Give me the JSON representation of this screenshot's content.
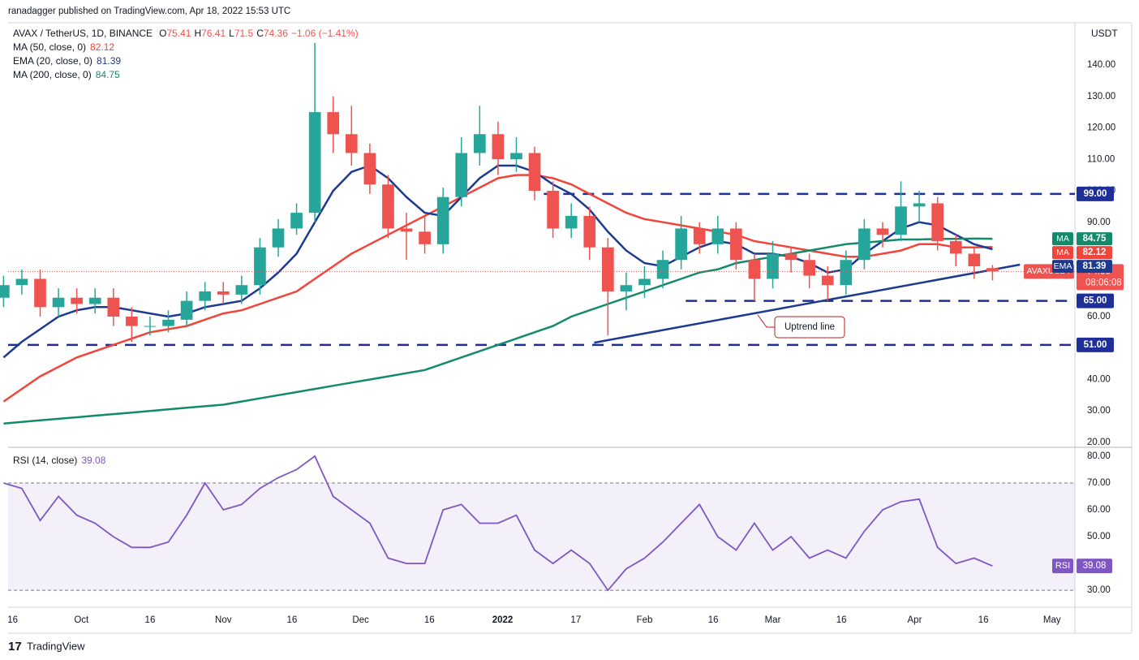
{
  "header": {
    "published": "ranadagger published on TradingView.com, Apr 18, 2022 15:53 UTC",
    "symbol": "AVAX / TetherUS, 1D, BINANCE",
    "ohlc_letters": [
      "O",
      "H",
      "L",
      "C"
    ],
    "change": "−1.06 (−1.41%)",
    "currency": "USDT",
    "price_tag": "AVAXUSDT",
    "countdown": "08:06:08"
  },
  "chart_data": [
    {
      "type": "candlestick",
      "x": [
        "2021-09-14",
        "2021-09-18",
        "2021-09-22",
        "2021-09-26",
        "2021-09-30",
        "2021-10-04",
        "2021-10-08",
        "2021-10-12",
        "2021-10-16",
        "2021-10-20",
        "2021-10-24",
        "2021-10-28",
        "2021-11-01",
        "2021-11-05",
        "2021-11-09",
        "2021-11-13",
        "2021-11-17",
        "2021-11-21",
        "2021-11-25",
        "2021-11-29",
        "2021-12-03",
        "2021-12-07",
        "2021-12-11",
        "2021-12-15",
        "2021-12-19",
        "2021-12-23",
        "2021-12-27",
        "2021-12-31",
        "2022-01-04",
        "2022-01-08",
        "2022-01-12",
        "2022-01-16",
        "2022-01-20",
        "2022-01-24",
        "2022-01-28",
        "2022-02-01",
        "2022-02-05",
        "2022-02-09",
        "2022-02-13",
        "2022-02-17",
        "2022-02-21",
        "2022-02-25",
        "2022-03-01",
        "2022-03-05",
        "2022-03-09",
        "2022-03-13",
        "2022-03-17",
        "2022-03-21",
        "2022-03-25",
        "2022-03-29",
        "2022-04-02",
        "2022-04-06",
        "2022-04-10",
        "2022-04-14",
        "2022-04-18"
      ],
      "open": [
        66,
        70,
        72,
        63,
        66,
        64,
        66,
        60,
        57,
        57,
        59,
        65,
        68,
        67,
        70,
        82,
        88,
        93,
        125,
        118,
        112,
        102,
        88,
        87,
        83,
        98,
        112,
        118,
        110,
        112,
        100,
        88,
        92,
        82,
        68,
        70,
        72,
        78,
        88,
        83,
        88,
        78,
        72,
        80,
        78,
        73,
        70,
        78,
        88,
        86,
        95,
        96,
        84,
        80,
        75.41
      ],
      "high": [
        73,
        75,
        75,
        69,
        69,
        69,
        69,
        63,
        60,
        62,
        68,
        71,
        71,
        73,
        85,
        91,
        96,
        147,
        130,
        127,
        115,
        105,
        93,
        92,
        101,
        117,
        127,
        122,
        117,
        114,
        103,
        96,
        95,
        85,
        74,
        76,
        81,
        92,
        90,
        92,
        90,
        80,
        84,
        82,
        80,
        76,
        81,
        91,
        90,
        103,
        100,
        98,
        86,
        82,
        76.41
      ],
      "low": [
        63,
        67,
        60,
        60,
        61,
        61,
        57,
        52,
        54,
        55,
        57,
        62,
        64,
        64,
        67,
        79,
        86,
        90,
        112,
        108,
        99,
        85,
        78,
        80,
        80,
        95,
        108,
        105,
        106,
        97,
        85,
        85,
        78,
        54,
        62,
        66,
        69,
        75,
        80,
        80,
        75,
        65,
        69,
        74,
        69,
        65,
        67,
        75,
        82,
        84,
        90,
        81,
        76,
        72,
        71.5
      ],
      "close": [
        70,
        72,
        63,
        66,
        64,
        66,
        60,
        57,
        57,
        59,
        65,
        68,
        67,
        70,
        82,
        88,
        93,
        125,
        118,
        112,
        102,
        88,
        87,
        83,
        98,
        112,
        118,
        110,
        112,
        100,
        88,
        92,
        82,
        68,
        70,
        72,
        78,
        88,
        83,
        88,
        78,
        72,
        80,
        78,
        73,
        70,
        78,
        88,
        86,
        95,
        96,
        84,
        80,
        76,
        74.36
      ],
      "up_color": "#26a69a",
      "down_color": "#ef5350",
      "series": [
        {
          "name": "MA (50, close, 0)",
          "tag": "MA",
          "color": "#f0453a",
          "values": [
            33,
            37,
            41,
            44,
            47,
            49,
            51,
            53,
            55,
            56,
            57,
            59,
            61,
            62,
            64,
            66,
            68,
            72,
            76,
            80,
            83,
            86,
            89,
            92,
            95,
            98,
            101,
            104,
            105,
            105,
            104,
            102,
            99,
            96,
            93,
            91,
            90,
            89,
            88,
            87,
            86,
            84,
            83,
            82,
            81,
            80,
            79,
            79,
            80,
            81,
            83,
            83,
            82,
            82,
            82.12
          ]
        },
        {
          "name": "EMA (20, close, 0)",
          "tag": "EMA",
          "color": "#1c3a8f",
          "values": [
            47,
            52,
            56,
            60,
            62,
            63,
            63,
            62,
            61,
            60,
            61,
            63,
            64,
            65,
            69,
            74,
            80,
            90,
            100,
            106,
            108,
            104,
            98,
            93,
            92,
            98,
            104,
            108,
            108,
            106,
            102,
            99,
            94,
            87,
            81,
            77,
            76,
            79,
            82,
            84,
            83,
            80,
            80,
            79,
            77,
            74,
            75,
            80,
            84,
            88,
            90,
            89,
            86,
            83,
            81.39
          ]
        },
        {
          "name": "MA (200, close, 0)",
          "tag": "MA",
          "color": "#138a6b",
          "values": [
            26,
            26.5,
            27,
            27.5,
            28,
            28.5,
            29,
            29.5,
            30,
            30.5,
            31,
            31.5,
            32,
            33,
            34,
            35,
            36,
            37,
            38,
            39,
            40,
            41,
            42,
            43,
            45,
            47,
            49,
            51,
            53,
            55,
            57,
            60,
            62,
            64,
            66,
            68,
            70,
            72,
            74,
            75,
            77,
            78,
            79,
            80,
            81,
            82,
            83,
            83.5,
            84,
            84.5,
            84.5,
            84.7,
            84.7,
            84.8,
            84.75
          ]
        }
      ],
      "xlim": [
        "2021-09-15",
        "2022-05-06"
      ],
      "xticks": [
        {
          "value": "2021-09-16",
          "label": "16"
        },
        {
          "value": "2021-10-01",
          "label": "Oct"
        },
        {
          "value": "2021-10-16",
          "label": "16"
        },
        {
          "value": "2021-11-01",
          "label": "Nov"
        },
        {
          "value": "2021-11-16",
          "label": "16"
        },
        {
          "value": "2021-12-01",
          "label": "Dec"
        },
        {
          "value": "2021-12-16",
          "label": "16"
        },
        {
          "value": "2022-01-01",
          "label": "2022"
        },
        {
          "value": "2022-01-17",
          "label": "17"
        },
        {
          "value": "2022-02-01",
          "label": "Feb"
        },
        {
          "value": "2022-02-16",
          "label": "16"
        },
        {
          "value": "2022-03-01",
          "label": "Mar"
        },
        {
          "value": "2022-03-16",
          "label": "16"
        },
        {
          "value": "2022-04-01",
          "label": "Apr"
        },
        {
          "value": "2022-04-16",
          "label": "16"
        },
        {
          "value": "2022-05-01",
          "label": "May"
        }
      ],
      "ylim": [
        18.7,
        152.9
      ],
      "yticks": [
        {
          "value": 20,
          "label": "20.00"
        },
        {
          "value": 30,
          "label": "30.00"
        },
        {
          "value": 40,
          "label": "40.00"
        },
        {
          "value": 50,
          "label": "50.00"
        },
        {
          "value": 60,
          "label": "60.00"
        },
        {
          "value": 70,
          "label": "70.00"
        },
        {
          "value": 80,
          "label": "80.00"
        },
        {
          "value": 90,
          "label": "90.00"
        },
        {
          "value": 100,
          "label": "100.00"
        },
        {
          "value": 110,
          "label": "110.00"
        },
        {
          "value": 120,
          "label": "120.00"
        },
        {
          "value": 130,
          "label": "130.00"
        },
        {
          "value": 140,
          "label": "140.00"
        }
      ],
      "levels": [
        {
          "value": 99,
          "label": "99.00",
          "from": "2022-01-10",
          "color": "#1e2f97"
        },
        {
          "value": 65,
          "label": "65.00",
          "from": "2022-02-10",
          "color": "#1e2f97"
        },
        {
          "value": 51,
          "label": "51.00",
          "from": "2021-09-15",
          "color": "#1e2f97"
        }
      ],
      "trendline": {
        "x": [
          "2022-01-21",
          "2022-04-24"
        ],
        "values": [
          51.7,
          76.5
        ],
        "color": "#1c3a8f"
      },
      "annotation": "Uptrend line"
    },
    {
      "type": "line",
      "series": [
        {
          "name": "RSI (14, close)",
          "tag": "RSI",
          "color": "#7e57c2",
          "values": [
            70,
            68,
            56,
            65,
            58,
            55,
            50,
            46,
            46,
            48,
            58,
            70,
            60,
            62,
            68,
            72,
            75,
            80,
            65,
            60,
            55,
            42,
            40,
            40,
            60,
            62,
            55,
            55,
            58,
            45,
            40,
            45,
            40,
            30,
            38,
            42,
            48,
            55,
            62,
            50,
            45,
            55,
            45,
            50,
            42,
            45,
            42,
            52,
            60,
            63,
            64,
            46,
            40,
            42,
            39.08
          ]
        }
      ],
      "ylim": [
        23.7,
        83
      ],
      "yticks": [
        {
          "value": 30,
          "label": "30.00"
        },
        {
          "value": 40,
          "label": "40.00"
        },
        {
          "value": 50,
          "label": "50.00"
        },
        {
          "value": 60,
          "label": "60.00"
        },
        {
          "value": 70,
          "label": "70.00"
        },
        {
          "value": 80,
          "label": "80.00"
        }
      ],
      "band": [
        30,
        70
      ]
    }
  ],
  "footer": {
    "brand": "TradingView"
  }
}
